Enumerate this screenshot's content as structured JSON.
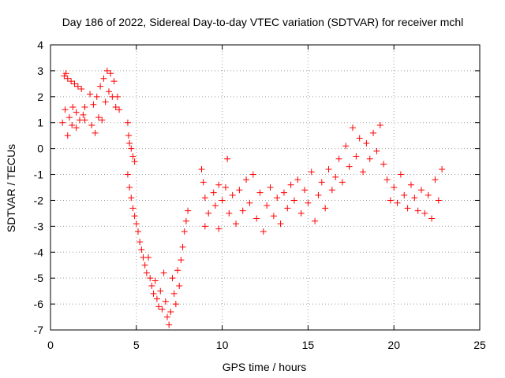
{
  "chart_data": {
    "type": "scatter",
    "title": "Day 186 of 2022, Sidereal Day-to-day VTEC variation (SDTVAR) for receiver mchl",
    "xlabel": "GPS time / hours",
    "ylabel": "SDTVAR / TECUs",
    "xlim": [
      0,
      25
    ],
    "ylim": [
      -7,
      4
    ],
    "xticks": [
      "0",
      "5",
      "10",
      "15",
      "20",
      "25"
    ],
    "yticks": [
      "4",
      "3",
      "2",
      "1",
      "0",
      "-1",
      "-2",
      "-3",
      "-4",
      "-5",
      "-6",
      "-7"
    ],
    "grid": true,
    "marker": "plus",
    "series": [
      {
        "name": "SDTVAR",
        "color": "#ff0000",
        "points": [
          [
            0.7,
            1.0
          ],
          [
            0.8,
            2.8
          ],
          [
            0.85,
            1.5
          ],
          [
            0.9,
            2.9
          ],
          [
            1.0,
            0.5
          ],
          [
            1.0,
            2.7
          ],
          [
            1.1,
            1.2
          ],
          [
            1.2,
            2.6
          ],
          [
            1.25,
            0.9
          ],
          [
            1.3,
            1.6
          ],
          [
            1.4,
            2.5
          ],
          [
            1.5,
            0.8
          ],
          [
            1.5,
            1.4
          ],
          [
            1.6,
            2.4
          ],
          [
            1.7,
            1.1
          ],
          [
            1.8,
            2.3
          ],
          [
            1.9,
            1.3
          ],
          [
            2.0,
            1.6
          ],
          [
            2.0,
            1.1
          ],
          [
            2.3,
            2.1
          ],
          [
            2.4,
            0.9
          ],
          [
            2.5,
            1.7
          ],
          [
            2.6,
            0.6
          ],
          [
            2.7,
            2.0
          ],
          [
            2.8,
            1.2
          ],
          [
            2.9,
            2.4
          ],
          [
            3.0,
            1.1
          ],
          [
            3.1,
            2.7
          ],
          [
            3.2,
            1.8
          ],
          [
            3.3,
            3.0
          ],
          [
            3.4,
            2.2
          ],
          [
            3.5,
            2.9
          ],
          [
            3.6,
            2.0
          ],
          [
            3.7,
            2.6
          ],
          [
            3.8,
            1.6
          ],
          [
            3.9,
            2.0
          ],
          [
            4.0,
            1.5
          ],
          [
            4.5,
            1.0
          ],
          [
            4.55,
            0.5
          ],
          [
            4.6,
            0.2
          ],
          [
            4.7,
            0.0
          ],
          [
            4.8,
            -0.3
          ],
          [
            4.9,
            -0.5
          ],
          [
            4.5,
            -1.0
          ],
          [
            4.6,
            -1.5
          ],
          [
            4.7,
            -1.9
          ],
          [
            4.8,
            -2.3
          ],
          [
            4.9,
            -2.6
          ],
          [
            5.0,
            -2.9
          ],
          [
            5.1,
            -3.2
          ],
          [
            5.2,
            -3.6
          ],
          [
            5.3,
            -3.9
          ],
          [
            5.4,
            -4.2
          ],
          [
            5.5,
            -4.5
          ],
          [
            5.6,
            -4.8
          ],
          [
            5.7,
            -4.2
          ],
          [
            5.8,
            -5.0
          ],
          [
            5.9,
            -5.3
          ],
          [
            6.0,
            -5.6
          ],
          [
            6.1,
            -5.1
          ],
          [
            6.2,
            -5.8
          ],
          [
            6.3,
            -6.1
          ],
          [
            6.4,
            -5.5
          ],
          [
            6.5,
            -6.2
          ],
          [
            6.6,
            -4.8
          ],
          [
            6.7,
            -5.9
          ],
          [
            6.8,
            -6.5
          ],
          [
            6.9,
            -6.8
          ],
          [
            7.0,
            -6.3
          ],
          [
            7.1,
            -5.0
          ],
          [
            7.2,
            -5.6
          ],
          [
            7.3,
            -6.0
          ],
          [
            7.4,
            -4.7
          ],
          [
            7.5,
            -5.3
          ],
          [
            7.6,
            -4.3
          ],
          [
            7.7,
            -3.8
          ],
          [
            7.8,
            -3.2
          ],
          [
            7.9,
            -2.8
          ],
          [
            8.0,
            -2.4
          ],
          [
            8.8,
            -0.8
          ],
          [
            8.9,
            -1.3
          ],
          [
            9.0,
            -1.9
          ],
          [
            9.0,
            -3.0
          ],
          [
            9.2,
            -2.5
          ],
          [
            9.5,
            -1.7
          ],
          [
            9.6,
            -2.2
          ],
          [
            9.8,
            -1.4
          ],
          [
            9.8,
            -3.1
          ],
          [
            10.0,
            -2.0
          ],
          [
            10.2,
            -1.5
          ],
          [
            10.3,
            -0.4
          ],
          [
            10.4,
            -2.5
          ],
          [
            10.6,
            -1.8
          ],
          [
            10.8,
            -2.9
          ],
          [
            11.0,
            -1.6
          ],
          [
            11.2,
            -2.4
          ],
          [
            11.4,
            -1.2
          ],
          [
            11.6,
            -2.1
          ],
          [
            11.8,
            -1.0
          ],
          [
            12.0,
            -2.7
          ],
          [
            12.2,
            -1.7
          ],
          [
            12.4,
            -3.2
          ],
          [
            12.6,
            -2.2
          ],
          [
            12.8,
            -1.5
          ],
          [
            13.0,
            -2.6
          ],
          [
            13.2,
            -1.9
          ],
          [
            13.4,
            -2.9
          ],
          [
            13.6,
            -1.7
          ],
          [
            13.8,
            -2.3
          ],
          [
            14.0,
            -1.4
          ],
          [
            14.2,
            -2.0
          ],
          [
            14.4,
            -1.2
          ],
          [
            14.6,
            -2.5
          ],
          [
            14.8,
            -1.6
          ],
          [
            15.0,
            -2.1
          ],
          [
            15.2,
            -0.9
          ],
          [
            15.4,
            -2.8
          ],
          [
            15.6,
            -1.8
          ],
          [
            15.8,
            -1.3
          ],
          [
            16.0,
            -2.3
          ],
          [
            16.2,
            -0.8
          ],
          [
            16.4,
            -1.6
          ],
          [
            16.6,
            -1.1
          ],
          [
            16.8,
            -0.4
          ],
          [
            17.0,
            -1.3
          ],
          [
            17.2,
            0.1
          ],
          [
            17.4,
            -0.7
          ],
          [
            17.6,
            0.8
          ],
          [
            17.8,
            -0.3
          ],
          [
            18.0,
            0.4
          ],
          [
            18.2,
            -0.9
          ],
          [
            18.4,
            0.2
          ],
          [
            18.6,
            -0.4
          ],
          [
            18.8,
            0.6
          ],
          [
            19.0,
            -0.1
          ],
          [
            19.2,
            0.9
          ],
          [
            19.4,
            -0.6
          ],
          [
            19.6,
            -1.2
          ],
          [
            19.8,
            -2.0
          ],
          [
            20.0,
            -1.5
          ],
          [
            20.2,
            -2.1
          ],
          [
            20.4,
            -1.0
          ],
          [
            20.6,
            -1.8
          ],
          [
            20.8,
            -2.3
          ],
          [
            21.0,
            -1.4
          ],
          [
            21.2,
            -1.9
          ],
          [
            21.4,
            -2.4
          ],
          [
            21.6,
            -1.6
          ],
          [
            21.8,
            -2.5
          ],
          [
            22.0,
            -1.8
          ],
          [
            22.2,
            -2.7
          ],
          [
            22.4,
            -1.2
          ],
          [
            22.6,
            -2.0
          ],
          [
            22.8,
            -0.8
          ]
        ]
      }
    ]
  }
}
